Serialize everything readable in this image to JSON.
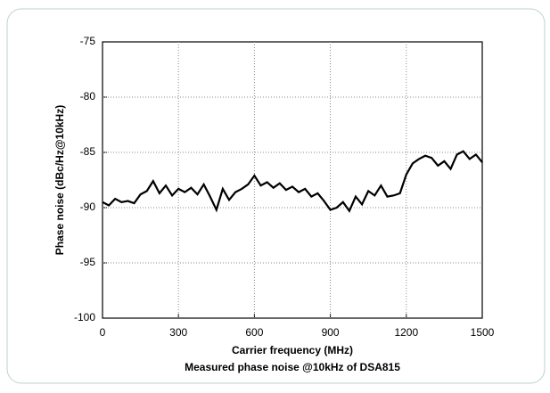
{
  "chart_data": {
    "type": "line",
    "caption": "Measured phase noise @10kHz of DSA815",
    "xlabel": "Carrier frequency (MHz)",
    "ylabel": "Phase noise (dBc/Hz@10kHz)",
    "xlim": [
      0,
      1500
    ],
    "xticks": [
      0,
      300,
      600,
      900,
      1200,
      1500
    ],
    "ylim": [
      -100,
      -75
    ],
    "yticks": [
      -75,
      -80,
      -85,
      -90,
      -95,
      -100
    ],
    "grid": true,
    "x": [
      0,
      25,
      50,
      75,
      100,
      125,
      150,
      175,
      200,
      225,
      250,
      275,
      300,
      325,
      350,
      375,
      400,
      425,
      450,
      475,
      500,
      525,
      550,
      575,
      600,
      625,
      650,
      675,
      700,
      725,
      750,
      775,
      800,
      825,
      850,
      875,
      900,
      925,
      950,
      975,
      1000,
      1025,
      1050,
      1075,
      1100,
      1125,
      1150,
      1175,
      1200,
      1225,
      1250,
      1275,
      1300,
      1325,
      1350,
      1375,
      1400,
      1425,
      1450,
      1475,
      1500
    ],
    "series": [
      {
        "color": "#000000",
        "values": [
          -89.5,
          -89.8,
          -89.2,
          -89.5,
          -89.4,
          -89.6,
          -88.8,
          -88.5,
          -87.6,
          -88.7,
          -88.0,
          -88.9,
          -88.3,
          -88.6,
          -88.2,
          -88.8,
          -87.9,
          -89.0,
          -90.2,
          -88.3,
          -89.3,
          -88.6,
          -88.3,
          -87.9,
          -87.1,
          -88.0,
          -87.7,
          -88.2,
          -87.8,
          -88.4,
          -88.1,
          -88.6,
          -88.3,
          -89.0,
          -88.7,
          -89.4,
          -90.2,
          -90.0,
          -89.5,
          -90.3,
          -89.0,
          -89.7,
          -88.5,
          -88.9,
          -88.0,
          -89.0,
          -88.9,
          -88.7,
          -87.0,
          -86.0,
          -85.6,
          -85.3,
          -85.5,
          -86.2,
          -85.8,
          -86.5,
          -85.2,
          -84.9,
          -85.6,
          -85.2,
          -85.9
        ]
      }
    ]
  }
}
